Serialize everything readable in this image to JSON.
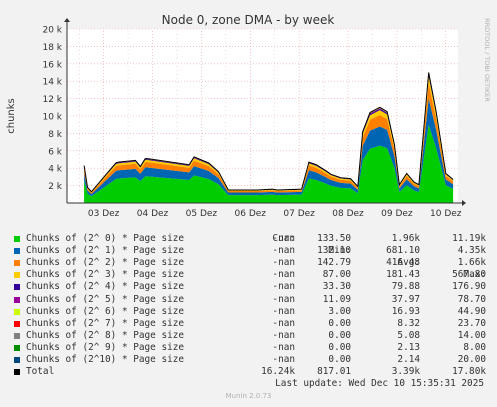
{
  "chart_data": {
    "type": "area",
    "title": "Node 0, zone DMA - by week",
    "ylabel": "chunks",
    "xlabel": "",
    "ylim": [
      0,
      20000
    ],
    "yticks": [
      {
        "v": 2000,
        "label": "2 k"
      },
      {
        "v": 4000,
        "label": "4 k"
      },
      {
        "v": 6000,
        "label": "6 k"
      },
      {
        "v": 8000,
        "label": "8 k"
      },
      {
        "v": 10000,
        "label": "10 k"
      },
      {
        "v": 12000,
        "label": "12 k"
      },
      {
        "v": 14000,
        "label": "14 k"
      },
      {
        "v": 16000,
        "label": "16 k"
      },
      {
        "v": 18000,
        "label": "18 k"
      },
      {
        "v": 20000,
        "label": "20 k"
      }
    ],
    "xlim": [
      0,
      8.0
    ],
    "xticks": [
      {
        "v": 0.75,
        "label": "03 Dez"
      },
      {
        "v": 1.75,
        "label": "04 Dez"
      },
      {
        "v": 2.75,
        "label": "05 Dez"
      },
      {
        "v": 3.75,
        "label": "06 Dez"
      },
      {
        "v": 4.75,
        "label": "07 Dez"
      },
      {
        "v": 5.75,
        "label": "08 Dez"
      },
      {
        "v": 6.75,
        "label": "09 Dez"
      },
      {
        "v": 7.75,
        "label": "10 Dez"
      }
    ],
    "grid": true,
    "legend_position": "bottom",
    "x": [
      0.35,
      0.42,
      0.5,
      1.0,
      1.05,
      1.4,
      1.5,
      1.6,
      1.65,
      2.5,
      2.6,
      2.9,
      3.1,
      3.3,
      3.9,
      4.2,
      4.3,
      4.8,
      4.95,
      5.1,
      5.3,
      5.4,
      5.6,
      5.8,
      5.95,
      6.05,
      6.2,
      6.4,
      6.55,
      6.7,
      6.8,
      6.95,
      7.1,
      7.2,
      7.4,
      7.55,
      7.75,
      7.9
    ],
    "totals": [
      4300,
      1800,
      1300,
      4600,
      4700,
      4900,
      4200,
      5100,
      5100,
      4400,
      5300,
      4600,
      3600,
      1500,
      1500,
      1600,
      1500,
      1600,
      4700,
      4400,
      3700,
      3300,
      2900,
      2800,
      1900,
      8200,
      10400,
      11000,
      10500,
      6700,
      2100,
      3400,
      2400,
      2100,
      15000,
      10600,
      3400,
      2700
    ],
    "series": [
      {
        "name": "Chunks of (2^ 0) * Page size",
        "color": "#00cc00",
        "current": "-nan",
        "min": "133.50",
        "avg": "1.96k",
        "max": "11.19k",
        "share": 0.6
      },
      {
        "name": "Chunks of (2^ 1) * Page size",
        "color": "#0066b3",
        "current": "-nan",
        "min": "132.10",
        "avg": "681.10",
        "max": "4.35k",
        "share": 0.2
      },
      {
        "name": "Chunks of (2^ 2) * Page size",
        "color": "#ff8000",
        "current": "-nan",
        "min": "142.79",
        "avg": "416.48",
        "max": "1.66k",
        "share": 0.12
      },
      {
        "name": "Chunks of (2^ 3) * Page size",
        "color": "#ffcc00",
        "current": "-nan",
        "min": "87.00",
        "avg": "181.43",
        "max": "567.80",
        "share": 0.05
      },
      {
        "name": "Chunks of (2^ 4) * Page size",
        "color": "#330099",
        "current": "-nan",
        "min": "33.30",
        "avg": "79.88",
        "max": "176.90",
        "share": 0.015
      },
      {
        "name": "Chunks of (2^ 5) * Page size",
        "color": "#990099",
        "current": "-nan",
        "min": "11.09",
        "avg": "37.97",
        "max": "78.70",
        "share": 0.005
      },
      {
        "name": "Chunks of (2^ 6) * Page size",
        "color": "#ccff00",
        "current": "-nan",
        "min": "3.00",
        "avg": "16.93",
        "max": "44.90",
        "share": 0.004
      },
      {
        "name": "Chunks of (2^ 7) * Page size",
        "color": "#ff0000",
        "current": "-nan",
        "min": "0.00",
        "avg": "8.32",
        "max": "23.70",
        "share": 0.003
      },
      {
        "name": "Chunks of (2^ 8) * Page size",
        "color": "#808080",
        "current": "-nan",
        "min": "0.00",
        "avg": "5.08",
        "max": "14.00",
        "share": 0.001
      },
      {
        "name": "Chunks of (2^ 9) * Page size",
        "color": "#008f00",
        "current": "-nan",
        "min": "0.00",
        "avg": "2.13",
        "max": "8.00",
        "share": 0.001
      },
      {
        "name": "Chunks of (2^10) * Page size",
        "color": "#00487d",
        "current": "-nan",
        "min": "0.00",
        "avg": "2.14",
        "max": "20.00",
        "share": 0.001
      },
      {
        "name": "Total",
        "color": "#000000",
        "current": "16.24k",
        "min": "817.01",
        "avg": "3.39k",
        "max": "17.80k"
      }
    ]
  },
  "legend_headers": {
    "cur": "Cur:",
    "min": "Min:",
    "avg": "Avg:",
    "max": "Max:"
  },
  "last_update": "Last update: Wed Dec 10 15:35:31 2025",
  "side_label": "RRDTOOL / TOBI OETIKER",
  "version": "Munin 2.0.73"
}
